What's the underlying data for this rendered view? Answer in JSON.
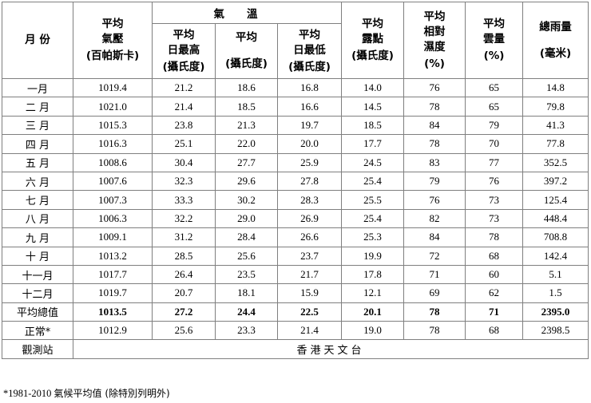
{
  "header": {
    "month": "月 份",
    "pressure": [
      "平均",
      "氣壓",
      "(百帕斯卡)"
    ],
    "temperature_group": "氣溫",
    "max_temp": [
      "平均",
      "日最高",
      "(攝氏度)"
    ],
    "mean_temp": [
      "平均",
      "(攝氏度)"
    ],
    "min_temp": [
      "平均",
      "日最低",
      "(攝氏度)"
    ],
    "dew_point": [
      "平均",
      "露點",
      "(攝氏度)"
    ],
    "humidity": [
      "平均",
      "相對",
      "濕度",
      "(%)"
    ],
    "cloud": [
      "平均",
      "雲量",
      "(%)"
    ],
    "rainfall": [
      "總雨量",
      "(毫米)"
    ]
  },
  "rows": [
    {
      "month": "一月",
      "pressure": "1019.4",
      "max": "21.2",
      "mean": "18.6",
      "min": "16.8",
      "dew": "14.0",
      "rh": "76",
      "cloud": "65",
      "rain": "14.8"
    },
    {
      "month": "二 月",
      "pressure": "1021.0",
      "max": "21.4",
      "mean": "18.5",
      "min": "16.6",
      "dew": "14.5",
      "rh": "78",
      "cloud": "65",
      "rain": "79.8"
    },
    {
      "month": "三 月",
      "pressure": "1015.3",
      "max": "23.8",
      "mean": "21.3",
      "min": "19.7",
      "dew": "18.5",
      "rh": "84",
      "cloud": "79",
      "rain": "41.3"
    },
    {
      "month": "四 月",
      "pressure": "1016.3",
      "max": "25.1",
      "mean": "22.0",
      "min": "20.0",
      "dew": "17.7",
      "rh": "78",
      "cloud": "70",
      "rain": "77.8"
    },
    {
      "month": "五 月",
      "pressure": "1008.6",
      "max": "30.4",
      "mean": "27.7",
      "min": "25.9",
      "dew": "24.5",
      "rh": "83",
      "cloud": "77",
      "rain": "352.5"
    },
    {
      "month": "六 月",
      "pressure": "1007.6",
      "max": "32.3",
      "mean": "29.6",
      "min": "27.8",
      "dew": "25.4",
      "rh": "79",
      "cloud": "76",
      "rain": "397.2"
    },
    {
      "month": "七 月",
      "pressure": "1007.3",
      "max": "33.3",
      "mean": "30.2",
      "min": "28.3",
      "dew": "25.5",
      "rh": "76",
      "cloud": "73",
      "rain": "125.4"
    },
    {
      "month": "八 月",
      "pressure": "1006.3",
      "max": "32.2",
      "mean": "29.0",
      "min": "26.9",
      "dew": "25.4",
      "rh": "82",
      "cloud": "73",
      "rain": "448.4"
    },
    {
      "month": "九 月",
      "pressure": "1009.1",
      "max": "31.2",
      "mean": "28.4",
      "min": "26.6",
      "dew": "25.3",
      "rh": "84",
      "cloud": "78",
      "rain": "708.8"
    },
    {
      "month": "十 月",
      "pressure": "1013.2",
      "max": "28.5",
      "mean": "25.6",
      "min": "23.7",
      "dew": "19.9",
      "rh": "72",
      "cloud": "68",
      "rain": "142.4"
    },
    {
      "month": "十一月",
      "pressure": "1017.7",
      "max": "26.4",
      "mean": "23.5",
      "min": "21.7",
      "dew": "17.8",
      "rh": "71",
      "cloud": "60",
      "rain": "5.1"
    },
    {
      "month": "十二月",
      "pressure": "1019.7",
      "max": "20.7",
      "mean": "18.1",
      "min": "15.9",
      "dew": "12.1",
      "rh": "69",
      "cloud": "62",
      "rain": "1.5"
    }
  ],
  "total": {
    "month": "平均總值",
    "pressure": "1013.5",
    "max": "27.2",
    "mean": "24.4",
    "min": "22.5",
    "dew": "20.1",
    "rh": "78",
    "cloud": "71",
    "rain": "2395.0"
  },
  "normal": {
    "month": "正常*",
    "pressure": "1012.9",
    "max": "25.6",
    "mean": "23.3",
    "min": "21.4",
    "dew": "19.0",
    "rh": "78",
    "cloud": "68",
    "rain": "2398.5"
  },
  "station": {
    "label": "觀測站",
    "value": "香港天文台"
  },
  "footnote": {
    "prefix": "*1981-2010 ",
    "text": "氣候平均值 (除特別列明外)"
  }
}
